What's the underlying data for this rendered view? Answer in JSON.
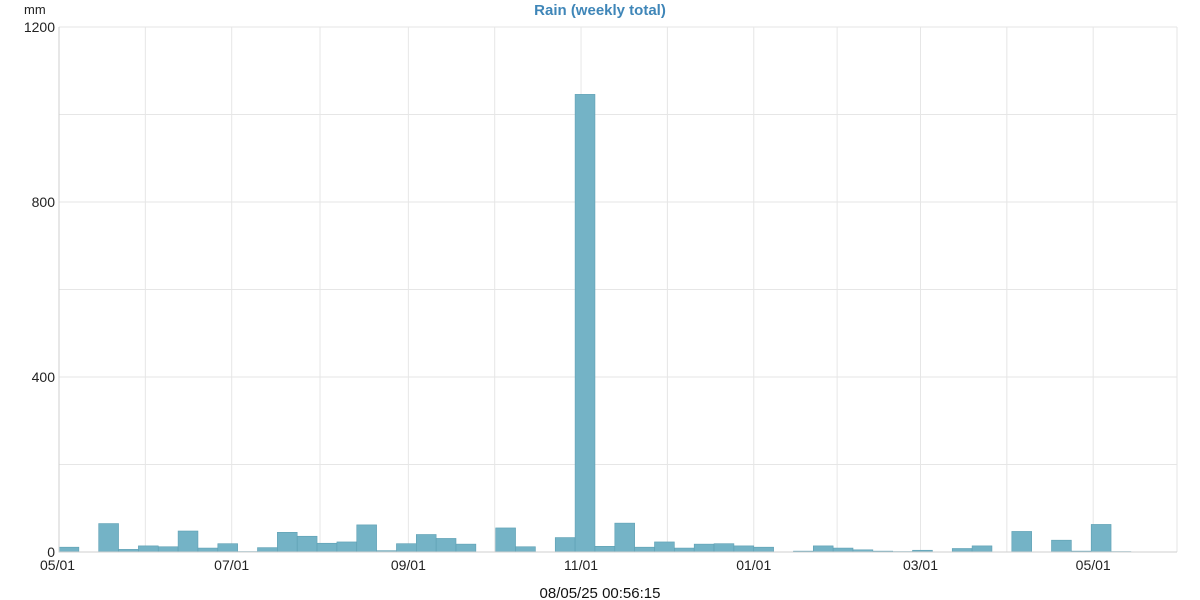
{
  "chart_data": {
    "type": "bar",
    "title": "Rain (weekly total)",
    "ylabel": "mm",
    "xlabel": "",
    "ylim": [
      0,
      1200
    ],
    "y_ticks": [
      0,
      400,
      800,
      1200
    ],
    "x_ticks": [
      {
        "label": "05/01",
        "week": 0
      },
      {
        "label": "07/01",
        "week": 8.7
      },
      {
        "label": "09/01",
        "week": 17.6
      },
      {
        "label": "11/01",
        "week": 26.3
      },
      {
        "label": "01/01",
        "week": 35.0
      },
      {
        "label": "03/01",
        "week": 43.4
      },
      {
        "label": "05/01",
        "week": 52.1
      }
    ],
    "grid": true,
    "bar_color": "#74b3c6",
    "values": [
      11,
      0,
      65,
      6,
      14,
      12,
      48,
      9,
      19,
      1,
      10,
      45,
      36,
      20,
      23,
      62,
      3,
      19,
      40,
      31,
      18,
      0,
      55,
      12,
      0,
      33,
      1046,
      13,
      66,
      11,
      23,
      9,
      18,
      19,
      14,
      11,
      0,
      2,
      14,
      9,
      5,
      2,
      1,
      4,
      0,
      8,
      14,
      0,
      47,
      0,
      27,
      2,
      63,
      1
    ]
  },
  "footer": {
    "timestamp": "08/05/25 00:56:15"
  }
}
